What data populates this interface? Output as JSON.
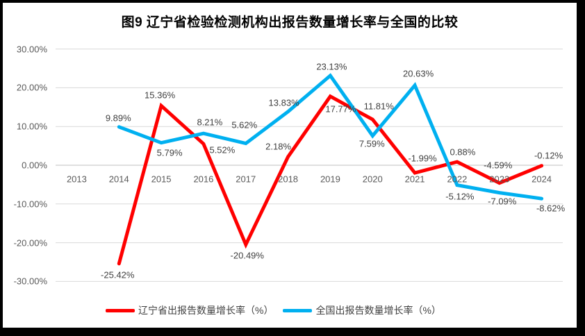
{
  "chart_data": {
    "type": "line",
    "title": "图9  辽宁省检验检测机构出报告数量增长率与全国的比较",
    "categories": [
      "2013",
      "2014",
      "2015",
      "2016",
      "2017",
      "2018",
      "2019",
      "2020",
      "2021",
      "2022",
      "2023",
      "2024"
    ],
    "y_tick_labels": [
      "30.00%",
      "20.00%",
      "10.00%",
      "0.00%",
      "-10.00%",
      "-20.00%",
      "-30.00%"
    ],
    "y_tick_values": [
      30,
      20,
      10,
      0,
      -10,
      -20,
      -30
    ],
    "ylim": [
      -30,
      30
    ],
    "grid": true,
    "legend_position": "bottom",
    "series": [
      {
        "name": "辽宁省出报告数量增长率（%）",
        "color": "#FF0000",
        "values": [
          null,
          -25.42,
          15.36,
          5.52,
          -20.49,
          2.18,
          17.77,
          11.81,
          -1.99,
          0.88,
          -4.59,
          -0.12
        ],
        "labels": [
          "",
          "-25.42%",
          "15.36%",
          "5.52%",
          "-20.49%",
          "2.18%",
          "17.77%",
          "11.81%",
          "-1.99%",
          "0.88%",
          "-4.59%",
          "-0.12%"
        ],
        "label_offsets": [
          [
            0,
            0
          ],
          [
            -2,
            16
          ],
          [
            -2,
            -15
          ],
          [
            27,
            9
          ],
          [
            2,
            16
          ],
          [
            -14,
            -15
          ],
          [
            15,
            18
          ],
          [
            9,
            -19
          ],
          [
            11,
            -21
          ],
          [
            8,
            -14
          ],
          [
            -2,
            -26
          ],
          [
            10,
            -15
          ]
        ]
      },
      {
        "name": "全国出报告数量增长率（%）",
        "color": "#00B0F0",
        "values": [
          null,
          9.89,
          5.79,
          8.21,
          5.62,
          13.83,
          23.13,
          7.59,
          20.63,
          -5.12,
          -7.09,
          -8.62
        ],
        "labels": [
          "",
          "9.89%",
          "5.79%",
          "8.21%",
          "5.62%",
          "13.83%",
          "23.13%",
          "7.59%",
          "20.63%",
          "-5.12%",
          "-7.09%",
          "-8.62%"
        ],
        "label_offsets": [
          [
            0,
            0
          ],
          [
            -1,
            -13
          ],
          [
            12,
            14
          ],
          [
            9,
            -16
          ],
          [
            -2,
            -27
          ],
          [
            -6,
            -13
          ],
          [
            2,
            -13
          ],
          [
            -1,
            11
          ],
          [
            5,
            -17
          ],
          [
            4,
            16
          ],
          [
            4,
            12
          ],
          [
            13,
            14
          ]
        ]
      }
    ]
  },
  "colors": {
    "liaoning_line": "#FF0000",
    "national_line": "#00B0F0",
    "gridline": "#D9D9D9",
    "zero_axis": "#BFBFBF",
    "axis_text": "#595959",
    "data_label_text": "#404040",
    "frame_border": "#000000"
  }
}
